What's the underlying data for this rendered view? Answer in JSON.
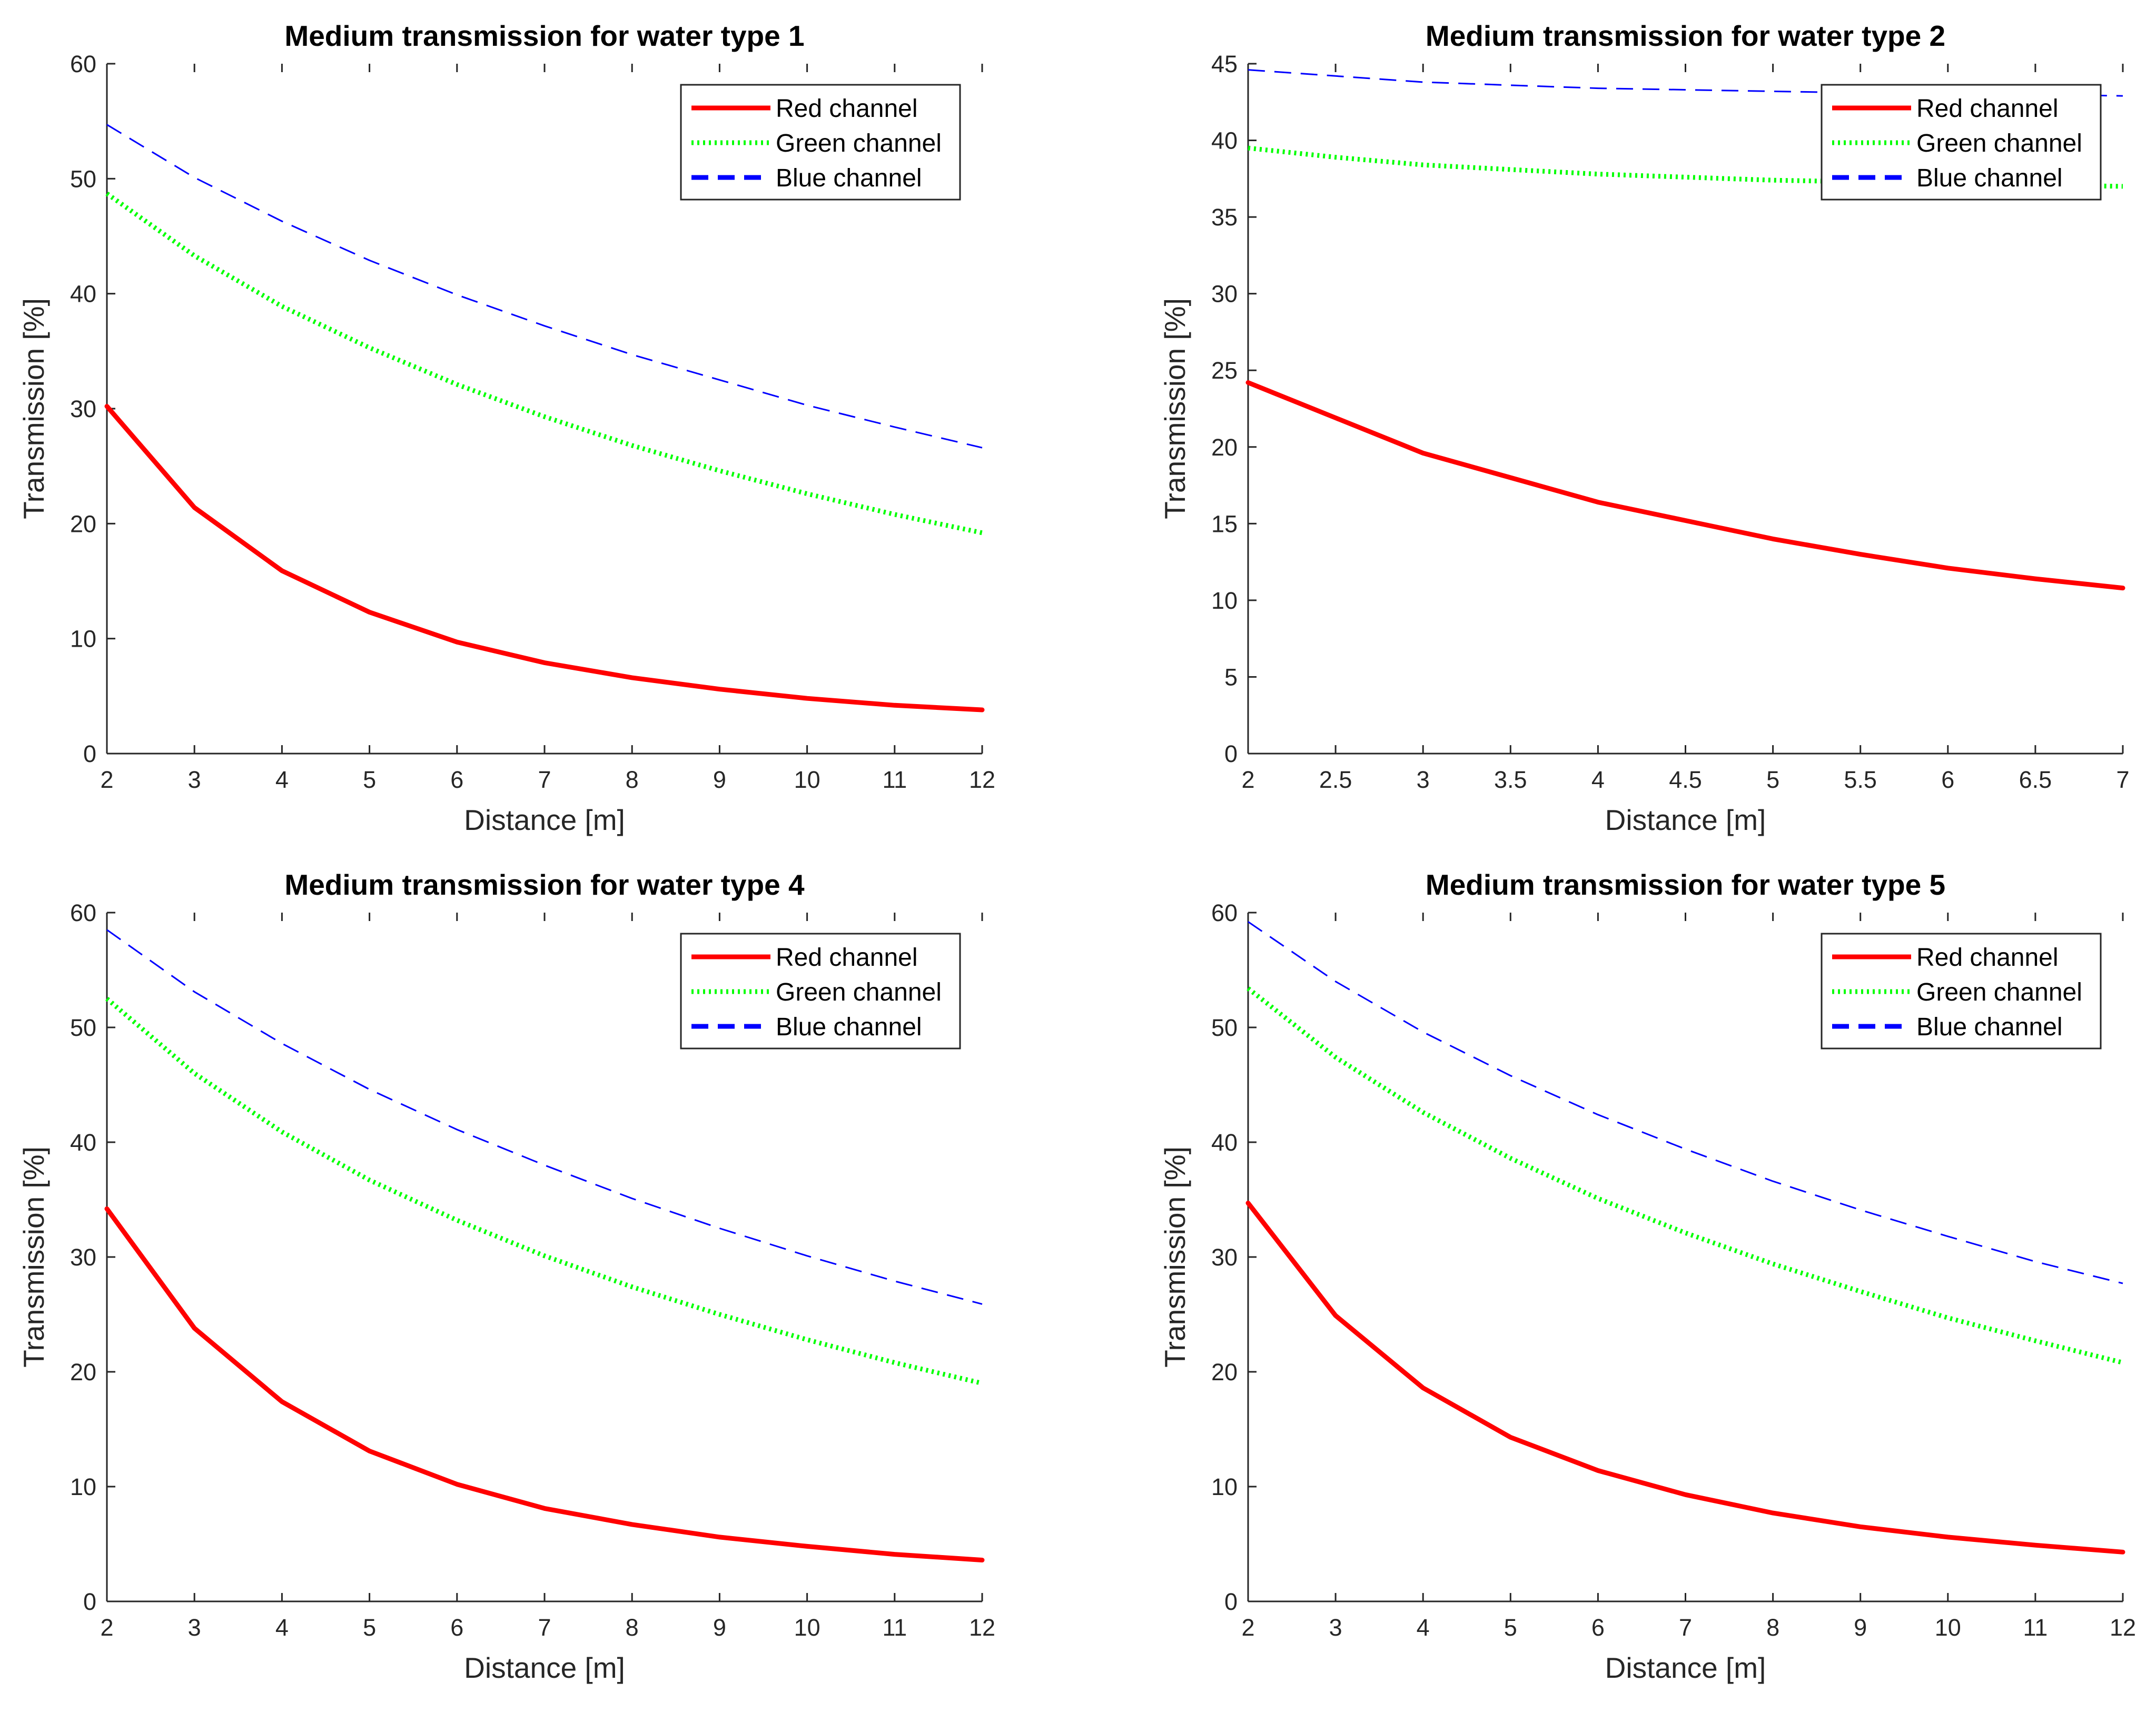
{
  "chart_data": [
    {
      "type": "line",
      "title": "Medium transmission for water type 1",
      "xlabel": "Distance [m]",
      "ylabel": "Transmission [%]",
      "xlim": [
        2,
        12
      ],
      "ylim": [
        0,
        60
      ],
      "xticks": [
        "2",
        "3",
        "4",
        "5",
        "6",
        "7",
        "8",
        "9",
        "10",
        "11",
        "12"
      ],
      "yticks": [
        "0",
        "10",
        "20",
        "30",
        "40",
        "50",
        "60"
      ],
      "legend_position": "top-right",
      "x": [
        2,
        3,
        4,
        5,
        6,
        7,
        8,
        9,
        10,
        11,
        12
      ],
      "series": [
        {
          "name": "Red channel",
          "color": "#ff0000",
          "style": "solid",
          "values": [
            30.2,
            21.4,
            15.9,
            12.3,
            9.7,
            7.9,
            6.6,
            5.6,
            4.8,
            4.2,
            3.8
          ]
        },
        {
          "name": "Green channel",
          "color": "#00ff00",
          "style": "dotted",
          "values": [
            48.7,
            43.3,
            38.9,
            35.3,
            32.1,
            29.3,
            26.8,
            24.6,
            22.6,
            20.8,
            19.2
          ]
        },
        {
          "name": "Blue channel",
          "color": "#0000ff",
          "style": "dashed",
          "values": [
            54.7,
            50.1,
            46.3,
            42.9,
            39.9,
            37.2,
            34.7,
            32.5,
            30.3,
            28.4,
            26.6
          ]
        }
      ]
    },
    {
      "type": "line",
      "title": "Medium transmission for water type 2",
      "xlabel": "Distance [m]",
      "ylabel": "Transmission [%]",
      "xlim": [
        2,
        7
      ],
      "ylim": [
        0,
        45
      ],
      "xticks": [
        "2",
        "2.5",
        "3",
        "3.5",
        "4",
        "4.5",
        "5",
        "5.5",
        "6",
        "6.5",
        "7"
      ],
      "yticks": [
        "0",
        "5",
        "10",
        "15",
        "20",
        "25",
        "30",
        "35",
        "40",
        "45"
      ],
      "legend_position": "top-right",
      "x": [
        2,
        2.5,
        3,
        3.5,
        4,
        4.5,
        5,
        5.5,
        6,
        6.5,
        7
      ],
      "series": [
        {
          "name": "Red channel",
          "color": "#ff0000",
          "style": "solid",
          "values": [
            24.2,
            21.9,
            19.6,
            18.0,
            16.4,
            15.2,
            14.0,
            13.0,
            12.1,
            11.4,
            10.8
          ]
        },
        {
          "name": "Green channel",
          "color": "#00ff00",
          "style": "dotted",
          "values": [
            39.5,
            38.9,
            38.4,
            38.1,
            37.8,
            37.6,
            37.4,
            37.3,
            37.2,
            37.1,
            37.0
          ]
        },
        {
          "name": "Blue channel",
          "color": "#0000ff",
          "style": "dashed",
          "values": [
            44.6,
            44.2,
            43.8,
            43.6,
            43.4,
            43.3,
            43.2,
            43.1,
            43.1,
            43.0,
            42.9
          ]
        }
      ]
    },
    {
      "type": "line",
      "title": "Medium transmission for water type 4",
      "xlabel": "Distance [m]",
      "ylabel": "Transmission [%]",
      "xlim": [
        2,
        12
      ],
      "ylim": [
        0,
        60
      ],
      "xticks": [
        "2",
        "3",
        "4",
        "5",
        "6",
        "7",
        "8",
        "9",
        "10",
        "11",
        "12"
      ],
      "yticks": [
        "0",
        "10",
        "20",
        "30",
        "40",
        "50",
        "60"
      ],
      "legend_position": "top-right",
      "x": [
        2,
        3,
        4,
        5,
        6,
        7,
        8,
        9,
        10,
        11,
        12
      ],
      "series": [
        {
          "name": "Red channel",
          "color": "#ff0000",
          "style": "solid",
          "values": [
            34.2,
            23.8,
            17.4,
            13.1,
            10.2,
            8.1,
            6.7,
            5.6,
            4.8,
            4.1,
            3.6
          ]
        },
        {
          "name": "Green channel",
          "color": "#00ff00",
          "style": "dotted",
          "values": [
            52.5,
            46.0,
            40.9,
            36.7,
            33.2,
            30.1,
            27.4,
            25.0,
            22.8,
            20.8,
            19.0
          ]
        },
        {
          "name": "Blue channel",
          "color": "#0000ff",
          "style": "dashed",
          "values": [
            58.5,
            53.1,
            48.6,
            44.6,
            41.1,
            38.0,
            35.1,
            32.5,
            30.1,
            27.9,
            25.9
          ]
        }
      ]
    },
    {
      "type": "line",
      "title": "Medium transmission for water type 5",
      "xlabel": "Distance [m]",
      "ylabel": "Transmission [%]",
      "xlim": [
        2,
        12
      ],
      "ylim": [
        0,
        60
      ],
      "xticks": [
        "2",
        "3",
        "4",
        "5",
        "6",
        "7",
        "8",
        "9",
        "10",
        "11",
        "12"
      ],
      "yticks": [
        "0",
        "10",
        "20",
        "30",
        "40",
        "50",
        "60"
      ],
      "legend_position": "top-right",
      "x": [
        2,
        3,
        4,
        5,
        6,
        7,
        8,
        9,
        10,
        11,
        12
      ],
      "series": [
        {
          "name": "Red channel",
          "color": "#ff0000",
          "style": "solid",
          "values": [
            34.7,
            24.9,
            18.6,
            14.3,
            11.4,
            9.3,
            7.7,
            6.5,
            5.6,
            4.9,
            4.3
          ]
        },
        {
          "name": "Green channel",
          "color": "#00ff00",
          "style": "dotted",
          "values": [
            53.4,
            47.4,
            42.6,
            38.6,
            35.1,
            32.1,
            29.4,
            27.0,
            24.7,
            22.7,
            20.8
          ]
        },
        {
          "name": "Blue channel",
          "color": "#0000ff",
          "style": "dashed",
          "values": [
            59.2,
            54.0,
            49.6,
            45.8,
            42.4,
            39.4,
            36.6,
            34.1,
            31.8,
            29.6,
            27.7
          ]
        }
      ]
    }
  ]
}
